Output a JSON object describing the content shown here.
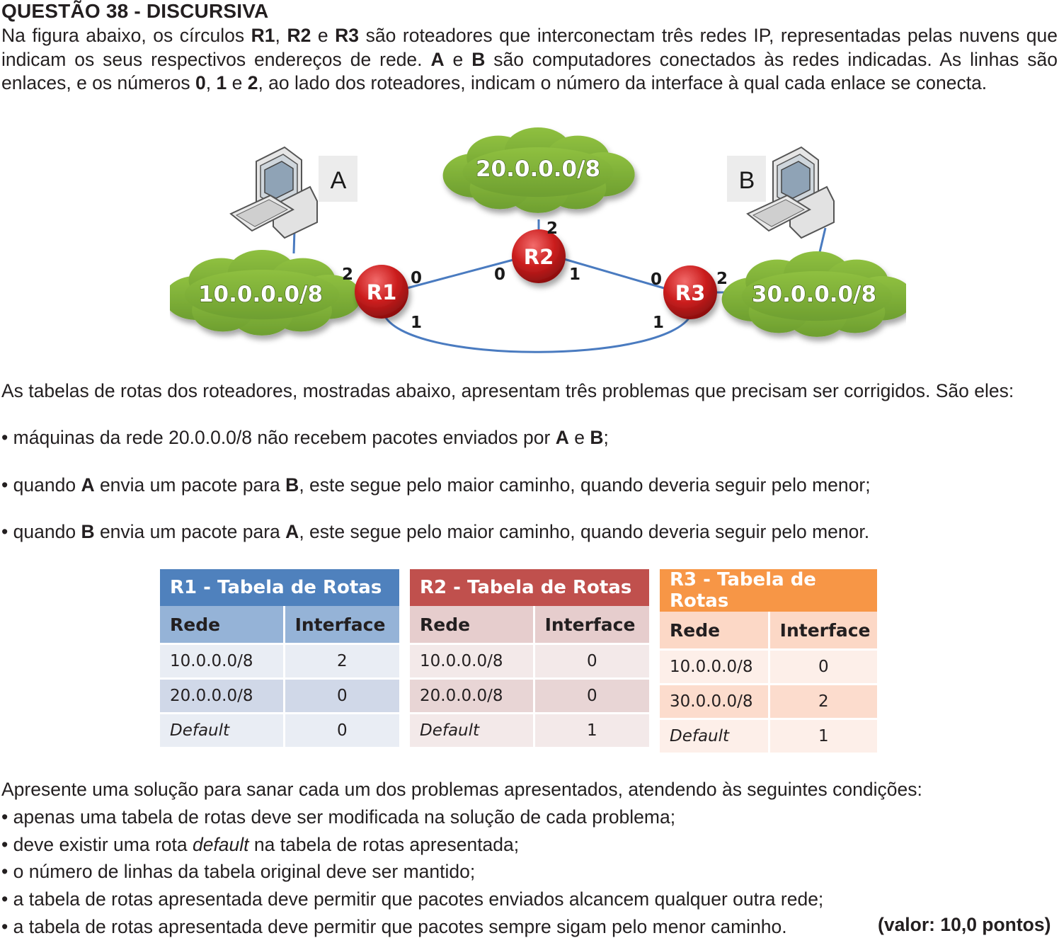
{
  "question": {
    "title": "QUESTÃO 38 - DISCURSIVA",
    "intro": [
      {
        "t": "Na figura abaixo, os círculos "
      },
      {
        "b": "R1"
      },
      {
        "t": ", "
      },
      {
        "b": "R2"
      },
      {
        "t": " e "
      },
      {
        "b": "R3"
      },
      {
        "t": " são roteadores que interconectam três redes IP, representadas pelas nuvens que indicam os seus respectivos endereços de rede. "
      },
      {
        "b": "A"
      },
      {
        "t": " e "
      },
      {
        "b": "B"
      },
      {
        "t": " são computadores conectados às redes indicadas. As linhas são enlaces, e os números "
      },
      {
        "b": "0"
      },
      {
        "t": ", "
      },
      {
        "b": "1"
      },
      {
        "t": " e "
      },
      {
        "b": "2"
      },
      {
        "t": ", ao lado dos roteadores, indicam o número da interface à qual cada enlace se conecta."
      }
    ]
  },
  "diagram": {
    "clouds": {
      "left": "10.0.0.0/8",
      "top": "20.0.0.0/8",
      "right": "30.0.0.0/8"
    },
    "routers": {
      "r1": "R1",
      "r2": "R2",
      "r3": "R3"
    },
    "hosts": {
      "a": "A",
      "b": "B"
    },
    "interfaces": {
      "r1_to_cloud": "2",
      "r1_to_r2": "0",
      "r1_to_r3": "1",
      "r2_to_cloud": "2",
      "r2_to_r1": "0",
      "r2_to_r3": "1",
      "r3_to_r2": "0",
      "r3_to_cloud": "2",
      "r3_to_r1": "1"
    },
    "colors": {
      "cloud": "#7fb13a",
      "router": "#cc1f1f",
      "link": "#4a7bc0"
    }
  },
  "problems_intro": "As tabelas de rotas dos roteadores, mostradas abaixo, apresentam três problemas que precisam ser corrigidos. São eles:",
  "problems": [
    [
      {
        "t": "• máquinas da rede 20.0.0.0/8 não recebem pacotes enviados por "
      },
      {
        "b": "A"
      },
      {
        "t": " e "
      },
      {
        "b": "B"
      },
      {
        "t": ";"
      }
    ],
    [
      {
        "t": "• quando "
      },
      {
        "b": "A"
      },
      {
        "t": " envia um pacote para "
      },
      {
        "b": "B"
      },
      {
        "t": ", este segue pelo maior caminho, quando deveria seguir  pelo menor;"
      }
    ],
    [
      {
        "t": "• quando "
      },
      {
        "b": "B"
      },
      {
        "t": " envia um pacote para "
      },
      {
        "b": "A"
      },
      {
        "t": ", este segue pelo maior caminho, quando deveria seguir pelo menor."
      }
    ]
  ],
  "tables": [
    {
      "caption": "R1 - Tabela de Rotas",
      "header": [
        "Rede",
        "Interface"
      ],
      "rows": [
        [
          "10.0.0.0/8",
          "2"
        ],
        [
          "20.0.0.0/8",
          "0"
        ],
        [
          "Default",
          "0"
        ]
      ],
      "colors": {
        "caption": "#4f81bd",
        "header": "#95b3d7",
        "row_light": "#e9edf4",
        "row_dark": "#d0d8e8"
      }
    },
    {
      "caption": "R2 - Tabela de Rotas",
      "header": [
        "Rede",
        "Interface"
      ],
      "rows": [
        [
          "10.0.0.0/8",
          "0"
        ],
        [
          "20.0.0.0/8",
          "0"
        ],
        [
          "Default",
          "1"
        ]
      ],
      "colors": {
        "caption": "#c0504d",
        "header": "#e6cdcd",
        "row_light": "#f3e9e9",
        "row_dark": "#e8d5d5"
      }
    },
    {
      "caption": "R3 - Tabela de Rotas",
      "header": [
        "Rede",
        "Interface"
      ],
      "rows": [
        [
          "10.0.0.0/8",
          "0"
        ],
        [
          "30.0.0.0/8",
          "2"
        ],
        [
          "Default",
          "1"
        ]
      ],
      "colors": {
        "caption": "#f79646",
        "header": "#fcd8c6",
        "row_light": "#fdefe9",
        "row_dark": "#fcdccd"
      }
    }
  ],
  "solution_intro": "Apresente uma solução para sanar cada um dos problemas apresentados, atendendo às seguintes condições:",
  "conditions": [
    [
      {
        "t": "• apenas uma tabela de rotas deve ser modificada na solução de cada problema;"
      }
    ],
    [
      {
        "t": "• deve existir uma rota "
      },
      {
        "i": "default"
      },
      {
        "t": " na tabela de rotas apresentada;"
      }
    ],
    [
      {
        "t": "• o número de linhas da tabela original deve ser mantido;"
      }
    ],
    [
      {
        "t": "• a tabela de rotas apresentada deve permitir que pacotes enviados alcancem qualquer outra rede;"
      }
    ],
    [
      {
        "t": "• a tabela de rotas apresentada deve permitir que pacotes sempre sigam pelo menor caminho."
      }
    ]
  ],
  "points": "(valor: 10,0 pontos)"
}
